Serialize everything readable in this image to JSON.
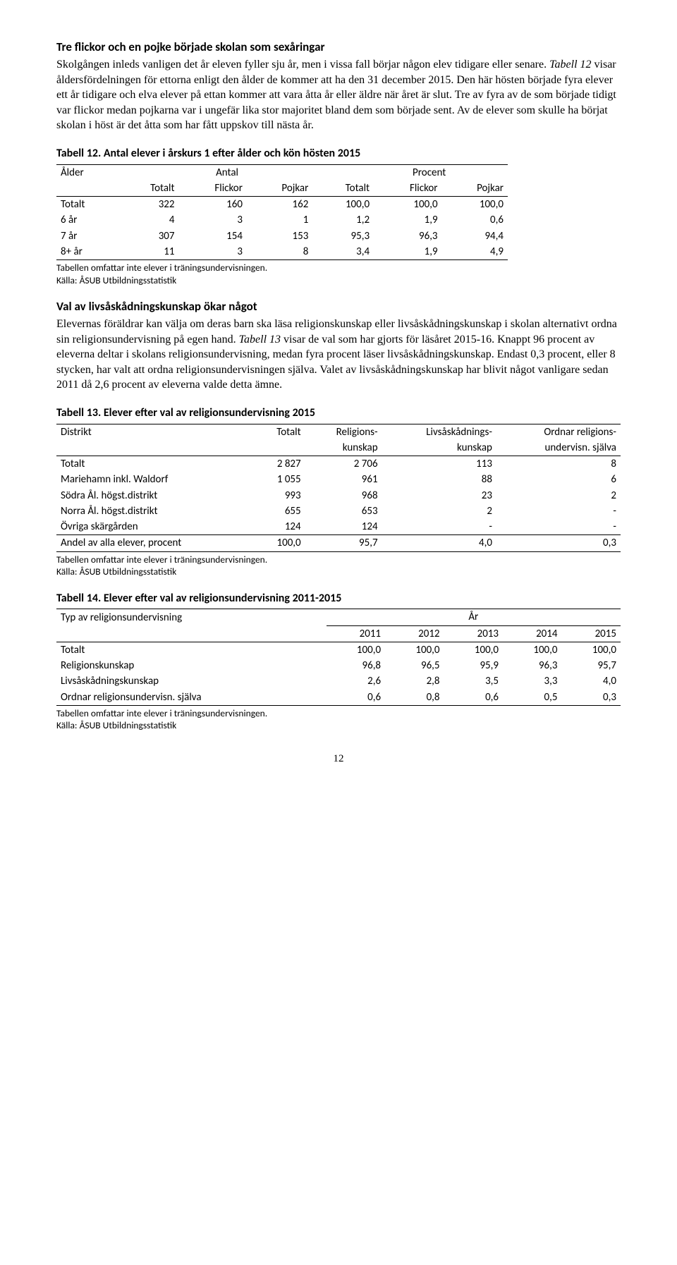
{
  "section1": {
    "heading": "Tre flickor och en pojke började skolan som sexåringar",
    "para": "Skolgången inleds vanligen det år eleven fyller sju år, men i vissa fall börjar någon elev tidigare eller senare. Tabell 12 visar åldersfördelningen för ettorna enligt den ålder de kommer att ha den 31 december 2015. Den här hösten började fyra elever ett år tidigare och elva elever på ettan kommer att vara åtta år eller äldre när året är slut. Tre av fyra av de som började tidigt var flickor medan pojkarna var i ungefär lika stor majoritet bland dem som började sent. Av de elever som skulle ha börjat skolan i höst är det åtta som har fått uppskov till nästa år."
  },
  "table12": {
    "title": "Tabell 12. Antal elever i årskurs 1 efter ålder och kön hösten 2015",
    "h_alder": "Ålder",
    "h_antal": "Antal",
    "h_procent": "Procent",
    "h_totalt": "Totalt",
    "h_flickor": "Flickor",
    "h_pojkar": "Pojkar",
    "rows": [
      {
        "label": "Totalt",
        "a1": "322",
        "a2": "160",
        "a3": "162",
        "p1": "100,0",
        "p2": "100,0",
        "p3": "100,0"
      },
      {
        "label": "6 år",
        "a1": "4",
        "a2": "3",
        "a3": "1",
        "p1": "1,2",
        "p2": "1,9",
        "p3": "0,6"
      },
      {
        "label": "7 år",
        "a1": "307",
        "a2": "154",
        "a3": "153",
        "p1": "95,3",
        "p2": "96,3",
        "p3": "94,4"
      },
      {
        "label": "8+ år",
        "a1": "11",
        "a2": "3",
        "a3": "8",
        "p1": "3,4",
        "p2": "1,9",
        "p3": "4,9"
      }
    ],
    "note1": "Tabellen omfattar inte elever i träningsundervisningen.",
    "note2": "Källa: ÅSUB Utbildningsstatistik"
  },
  "section2": {
    "heading": "Val av livsåskådningskunskap ökar något",
    "para": "Elevernas föräldrar kan välja om deras barn ska läsa religionskunskap eller livsåskådningskunskap i skolan alternativt ordna sin religionsundervisning på egen hand. Tabell 13 visar de val som har gjorts för läsåret 2015-16. Knappt 96 procent av eleverna deltar i skolans religionsundervisning, medan fyra procent läser livsåskådningskunskap. Endast 0,3 procent, eller 8 stycken, har valt att ordna religionsundervisningen själva. Valet av livsåskådningskunskap har blivit något vanligare sedan 2011 då 2,6 procent av eleverna valde detta ämne."
  },
  "table13": {
    "title": "Tabell 13. Elever efter val av religionsundervisning 2015",
    "h_distrikt": "Distrikt",
    "h_totalt": "Totalt",
    "h_rel1": "Religions-",
    "h_rel2": "kunskap",
    "h_liv1": "Livsåskådnings-",
    "h_liv2": "kunskap",
    "h_ord1": "Ordnar religions-",
    "h_ord2": "undervisn. själva",
    "rows": [
      {
        "label": "Totalt",
        "c1": "2 827",
        "c2": "2 706",
        "c3": "113",
        "c4": "8"
      },
      {
        "label": "Mariehamn inkl. Waldorf",
        "c1": "1 055",
        "c2": "961",
        "c3": "88",
        "c4": "6"
      },
      {
        "label": "Södra Ål. högst.distrikt",
        "c1": "993",
        "c2": "968",
        "c3": "23",
        "c4": "2"
      },
      {
        "label": "Norra Ål. högst.distrikt",
        "c1": "655",
        "c2": "653",
        "c3": "2",
        "c4": "-"
      },
      {
        "label": "Övriga skärgården",
        "c1": "124",
        "c2": "124",
        "c3": "-",
        "c4": "-"
      }
    ],
    "sumrow": {
      "label": "Andel av alla elever, procent",
      "c1": "100,0",
      "c2": "95,7",
      "c3": "4,0",
      "c4": "0,3"
    },
    "note1": "Tabellen omfattar inte elever i träningsundervisningen.",
    "note2": "Källa: ÅSUB Utbildningsstatistik"
  },
  "table14": {
    "title": "Tabell 14. Elever efter val av religionsundervisning 2011-2015",
    "h_typ": "Typ av religionsundervisning",
    "h_ar": "År",
    "years": [
      "2011",
      "2012",
      "2013",
      "2014",
      "2015"
    ],
    "rows": [
      {
        "label": "Totalt",
        "v": [
          "100,0",
          "100,0",
          "100,0",
          "100,0",
          "100,0"
        ]
      },
      {
        "label": "Religionskunskap",
        "v": [
          "96,8",
          "96,5",
          "95,9",
          "96,3",
          "95,7"
        ]
      },
      {
        "label": "Livsåskådningskunskap",
        "v": [
          "2,6",
          "2,8",
          "3,5",
          "3,3",
          "4,0"
        ]
      },
      {
        "label": "Ordnar religionsundervisn. själva",
        "v": [
          "0,6",
          "0,8",
          "0,6",
          "0,5",
          "0,3"
        ]
      }
    ],
    "note1": "Tabellen omfattar inte elever i träningsundervisningen.",
    "note2": "Källa: ÅSUB Utbildningsstatistik"
  },
  "page_number": "12"
}
